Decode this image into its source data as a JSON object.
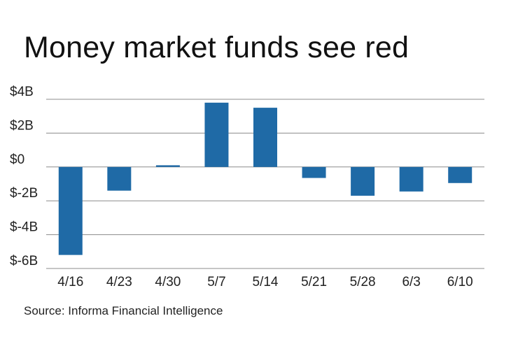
{
  "chart_data": {
    "type": "bar",
    "title": "Money market funds see red",
    "source": "Source: Informa Financial Intelligence",
    "xlabel": "",
    "ylabel": "",
    "categories": [
      "4/16",
      "4/23",
      "4/30",
      "5/7",
      "5/14",
      "5/21",
      "5/28",
      "6/3",
      "6/10"
    ],
    "values": [
      -5.2,
      -1.4,
      0.1,
      3.8,
      3.5,
      -0.65,
      -1.7,
      -1.45,
      -0.95
    ],
    "ylim": [
      -6,
      4
    ],
    "yticks": [
      4,
      2,
      0,
      -2,
      -4,
      -6
    ],
    "ytick_labels": [
      "$4B",
      "$2B",
      "$0",
      "$-2B",
      "$-4B",
      "$-6B"
    ],
    "grid": true,
    "legend": "none",
    "bar_color": "#1f6aa6",
    "grid_color": "#8c8c8c"
  }
}
